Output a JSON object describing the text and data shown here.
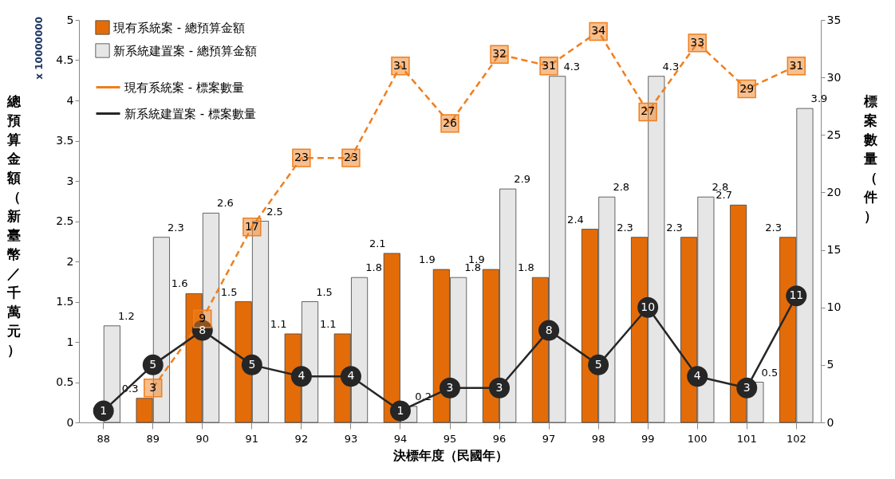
{
  "chart_data": {
    "type": "bar",
    "xlabel": "決標年度（民國年）",
    "ylabel": "總預算金額（新臺幣／千萬元）",
    "y2label": "標案數量（件）",
    "annotations": [
      "x 10000000"
    ],
    "categories": [
      "88",
      "89",
      "90",
      "91",
      "92",
      "93",
      "94",
      "95",
      "96",
      "97",
      "98",
      "99",
      "100",
      "101",
      "102"
    ],
    "series": [
      {
        "name": "現有系統案 - 總預算金額",
        "color": "#e36c09",
        "values": [
          null,
          0.3,
          1.6,
          1.5,
          1.1,
          1.1,
          2.1,
          1.9,
          1.9,
          1.8,
          2.4,
          2.3,
          2.3,
          2.7,
          2.3
        ]
      },
      {
        "name": "新系統建置案 - 總預算金額",
        "color": "#e6e6e6",
        "values": [
          1.2,
          2.3,
          2.6,
          2.5,
          1.5,
          1.8,
          0.2,
          1.8,
          2.9,
          4.3,
          2.8,
          4.3,
          2.8,
          0.5,
          3.9
        ]
      },
      {
        "name": "現有系統案 - 標案數量",
        "type": "line",
        "axis": "y2",
        "color": "#f07f1e",
        "marker": "square",
        "line_style": "dashed",
        "values": [
          null,
          3,
          9,
          17,
          23,
          23,
          31,
          26,
          32,
          31,
          34,
          27,
          33,
          29,
          31
        ]
      },
      {
        "name": "新系統建置案 - 標案數量",
        "type": "line",
        "axis": "y2",
        "color": "#262626",
        "marker": "circle",
        "line_style": "solid",
        "values": [
          1,
          5,
          8,
          5,
          4,
          4,
          1,
          3,
          3,
          8,
          5,
          10,
          4,
          3,
          11
        ]
      }
    ],
    "ylim": [
      0,
      5
    ],
    "yticks": [
      0,
      0.5,
      1,
      1.5,
      2,
      2.5,
      3,
      3.5,
      4,
      4.5,
      5
    ],
    "y2lim": [
      0,
      35
    ],
    "y2ticks": [
      0,
      5,
      10,
      15,
      20,
      25,
      30,
      35
    ],
    "data_labels": true,
    "grid": false,
    "legend": "top left"
  }
}
